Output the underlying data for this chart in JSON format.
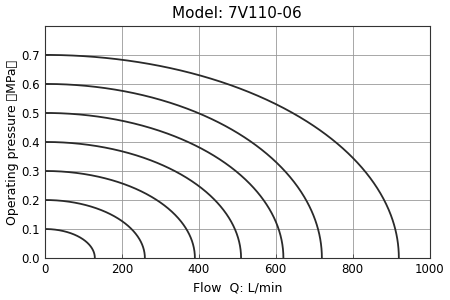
{
  "title": "Model: 7V110-06",
  "xlabel": "Flow  Q: L/min",
  "ylabel": "Operating pressure （MPa）",
  "xlim": [
    0,
    1000
  ],
  "ylim": [
    0,
    0.8
  ],
  "xticks": [
    0,
    200,
    400,
    600,
    800,
    1000
  ],
  "yticks": [
    0,
    0.1,
    0.2,
    0.3,
    0.4,
    0.5,
    0.6,
    0.7
  ],
  "curve_params": [
    {
      "p_max": 0.1,
      "q_max": 130
    },
    {
      "p_max": 0.2,
      "q_max": 260
    },
    {
      "p_max": 0.3,
      "q_max": 390
    },
    {
      "p_max": 0.4,
      "q_max": 510
    },
    {
      "p_max": 0.5,
      "q_max": 620
    },
    {
      "p_max": 0.6,
      "q_max": 720
    },
    {
      "p_max": 0.7,
      "q_max": 920
    }
  ],
  "line_color": "#2a2a2a",
  "line_width": 1.3,
  "grid_color": "#999999",
  "grid_linewidth": 0.6,
  "bg_color": "#ffffff",
  "title_fontsize": 11,
  "label_fontsize": 9,
  "tick_fontsize": 8.5
}
